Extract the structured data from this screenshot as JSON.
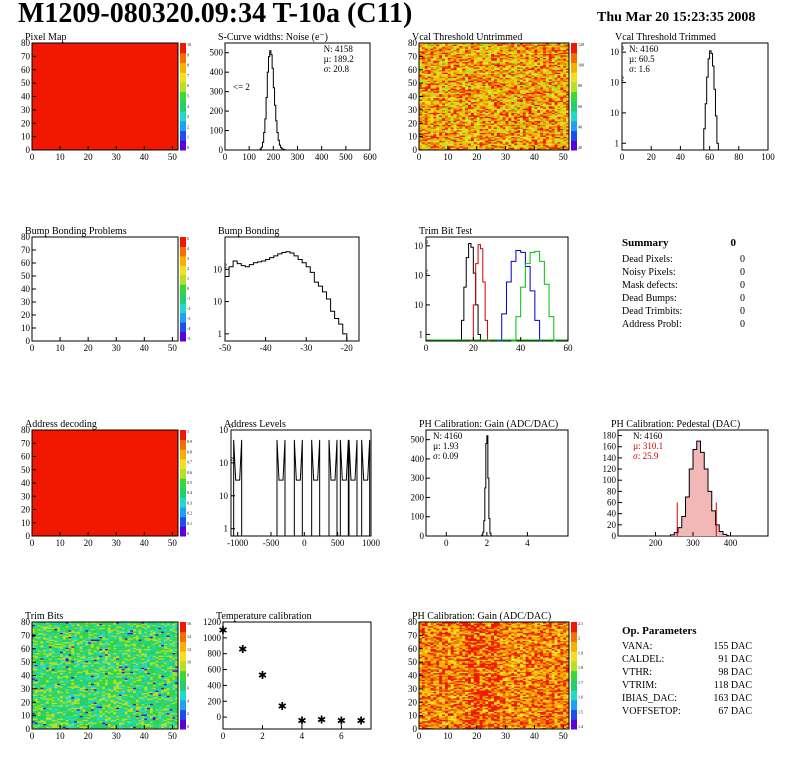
{
  "header": {
    "title": "M1209-080320.09:34 T-10a (C11)",
    "date": "Thu Mar 20 15:23:35 2008"
  },
  "palette": {
    "rainbow": [
      "#5a00d8",
      "#1c4df0",
      "#1fa0f0",
      "#22d8c8",
      "#20d070",
      "#38d838",
      "#b8e020",
      "#f0e020",
      "#f8b000",
      "#f07000",
      "#f01800"
    ],
    "trim_series_colors": [
      "#000000",
      "#d00000",
      "#0000d0",
      "#00c000"
    ],
    "pedestal_fill": "#f2b8b8"
  },
  "summary": {
    "title": "Summary",
    "total": "0",
    "rows": [
      {
        "label": "Dead Pixels:",
        "value": "0"
      },
      {
        "label": "Noisy Pixels:",
        "value": "0"
      },
      {
        "label": "Mask defects:",
        "value": "0"
      },
      {
        "label": "Dead Bumps:",
        "value": "0"
      },
      {
        "label": "Dead Trimbits:",
        "value": "0"
      },
      {
        "label": "Address Probl:",
        "value": "0"
      }
    ]
  },
  "op_params": {
    "title": "Op. Parameters",
    "rows": [
      {
        "label": "VANA:",
        "value": "155 DAC"
      },
      {
        "label": "CALDEL:",
        "value": "91 DAC"
      },
      {
        "label": "VTHR:",
        "value": "98 DAC"
      },
      {
        "label": "VTRIM:",
        "value": "118 DAC"
      },
      {
        "label": "IBIAS_DAC:",
        "value": "163 DAC"
      },
      {
        "label": "VOFFSETOP:",
        "value": "67 DAC"
      }
    ]
  },
  "chart_data": [
    {
      "id": "pixel-map",
      "type": "heatmap",
      "title": "Pixel Map",
      "xlim": [
        0,
        52
      ],
      "ylim": [
        0,
        80
      ],
      "xticks": [
        0,
        10,
        20,
        30,
        40,
        50
      ],
      "yticks": [
        0,
        10,
        20,
        30,
        40,
        50,
        60,
        70,
        80
      ],
      "pattern": "uniform",
      "fill": "#f01800",
      "zticks": [
        "10",
        "9",
        "8",
        "7",
        "6",
        "5",
        "4",
        "3",
        "2",
        "1",
        "0"
      ]
    },
    {
      "id": "scurve-widths",
      "type": "histogram",
      "title": "S-Curve widths: Noise (e⁻)",
      "xlim": [
        0,
        600
      ],
      "ylim": [
        0,
        550
      ],
      "xticks": [
        0,
        100,
        200,
        300,
        400,
        500,
        600
      ],
      "yticks": [
        0,
        100,
        200,
        300,
        400,
        500
      ],
      "stats": [
        "N: 4158",
        "µ: 189.2",
        "σ: 20.8"
      ],
      "annotation": "<= 2",
      "series": [
        {
          "x": [
            140,
            145,
            150,
            155,
            160,
            165,
            170,
            175,
            180,
            185,
            190,
            195,
            200,
            205,
            210,
            215,
            220,
            225,
            230,
            235,
            240,
            245,
            250
          ],
          "y": [
            0,
            5,
            15,
            40,
            90,
            160,
            270,
            400,
            480,
            510,
            490,
            420,
            320,
            230,
            150,
            90,
            50,
            25,
            12,
            6,
            3,
            1,
            0
          ]
        }
      ]
    },
    {
      "id": "vcal-untrimmed",
      "type": "heatmap",
      "title": "Vcal Threshold Untrimmed",
      "xlim": [
        0,
        52
      ],
      "ylim": [
        0,
        80
      ],
      "xticks": [
        0,
        10,
        20,
        30,
        40,
        50
      ],
      "yticks": [
        0,
        10,
        20,
        30,
        40,
        50,
        60,
        70,
        80
      ],
      "pattern": "random",
      "levels": [
        6,
        7,
        8,
        9,
        10
      ],
      "zticks": [
        "120",
        "100",
        "80",
        "60",
        "40",
        "20"
      ]
    },
    {
      "id": "vcal-trimmed",
      "type": "histogram",
      "title": "Vcal Threshold Trimmed",
      "xlim": [
        0,
        100
      ],
      "ylim": [
        0.6,
        2000
      ],
      "log": true,
      "xticks": [
        0,
        20,
        40,
        60,
        80,
        100
      ],
      "yticks": [
        1,
        10,
        100,
        1000
      ],
      "stats": [
        "N: 4160",
        "µ: 60.5",
        "σ: 1.6"
      ],
      "series": [
        {
          "x": [
            55,
            56,
            57,
            58,
            59,
            60,
            61,
            62,
            63,
            64,
            65,
            66
          ],
          "y": [
            0.6,
            3,
            20,
            150,
            600,
            1100,
            900,
            350,
            60,
            8,
            1,
            0.6
          ]
        }
      ]
    },
    {
      "id": "bump-bonding-problems",
      "type": "heatmap",
      "title": "Bump Bonding Problems",
      "xlim": [
        0,
        52
      ],
      "ylim": [
        0,
        80
      ],
      "xticks": [
        0,
        10,
        20,
        30,
        40,
        50
      ],
      "yticks": [
        0,
        10,
        20,
        30,
        40,
        50,
        60,
        70,
        80
      ],
      "pattern": "empty",
      "zticks": [
        "5",
        "4",
        "3",
        "2",
        "1",
        "0",
        "-1",
        "-2",
        "-3",
        "-4",
        "-5"
      ]
    },
    {
      "id": "bump-bonding",
      "type": "histogram",
      "title": "Bump Bonding",
      "xlim": [
        -50,
        -17
      ],
      "ylim": [
        0.6,
        1000
      ],
      "log": true,
      "xticks": [
        -50,
        -40,
        -30,
        -20
      ],
      "yticks": [
        1,
        10,
        100
      ],
      "stats": [],
      "series": [
        {
          "x": [
            -50,
            -49,
            -48,
            -47,
            -46,
            -45,
            -44,
            -43,
            -42,
            -41,
            -40,
            -39,
            -38,
            -37,
            -36,
            -35,
            -34,
            -33,
            -32,
            -31,
            -30,
            -29,
            -28,
            -27,
            -26,
            -25,
            -24,
            -23,
            -22,
            -21,
            -20,
            -19
          ],
          "y": [
            60,
            120,
            180,
            150,
            130,
            120,
            140,
            160,
            170,
            180,
            200,
            230,
            260,
            300,
            330,
            350,
            320,
            260,
            200,
            160,
            120,
            80,
            40,
            30,
            20,
            12,
            5,
            3,
            2,
            1,
            0.6,
            0.6
          ]
        }
      ]
    },
    {
      "id": "trim-bit-test",
      "type": "histogram",
      "title": "Trim Bit Test",
      "xlim": [
        0,
        60
      ],
      "ylim": [
        0.6,
        2000
      ],
      "log": true,
      "xticks": [
        0,
        20,
        40,
        60
      ],
      "yticks": [
        1,
        10,
        100,
        1000
      ],
      "stats": [],
      "series": [
        {
          "x": [
            14,
            15,
            16,
            17,
            18,
            19,
            20,
            21,
            22,
            23
          ],
          "y": [
            0.6,
            3,
            40,
            400,
            1200,
            900,
            120,
            10,
            1,
            0.6
          ]
        },
        {
          "x": [
            19,
            20,
            21,
            22,
            23,
            24,
            25,
            26
          ],
          "y": [
            0.6,
            10,
            250,
            1100,
            800,
            60,
            3,
            0.6
          ]
        },
        {
          "x": [
            30,
            32,
            34,
            36,
            38,
            40,
            42,
            44,
            46,
            48
          ],
          "y": [
            0.6,
            5,
            60,
            300,
            700,
            600,
            200,
            30,
            3,
            0.6
          ]
        },
        {
          "x": [
            36,
            38,
            40,
            42,
            44,
            46,
            48,
            50,
            52,
            54
          ],
          "y": [
            0.6,
            4,
            40,
            250,
            600,
            650,
            300,
            50,
            4,
            0.6
          ]
        }
      ]
    },
    {
      "id": "address-decoding",
      "type": "heatmap",
      "title": "Address decoding",
      "xlim": [
        0,
        52
      ],
      "ylim": [
        0,
        80
      ],
      "xticks": [
        0,
        10,
        20,
        30,
        40,
        50
      ],
      "yticks": [
        0,
        10,
        20,
        30,
        40,
        50,
        60,
        70,
        80
      ],
      "pattern": "uniform",
      "fill": "#f01800",
      "zticks": [
        "1",
        "0.9",
        "0.8",
        "0.7",
        "0.6",
        "0.5",
        "0.4",
        "0.3",
        "0.2",
        "0.1",
        "0"
      ]
    },
    {
      "id": "address-levels",
      "type": "histogram",
      "title": "Address Levels",
      "xlim": [
        -1100,
        1000
      ],
      "ylim": [
        0.6,
        1000
      ],
      "log": true,
      "xticks": [
        -1000,
        -500,
        0,
        500,
        1000
      ],
      "yticks": [
        1,
        10,
        100,
        1000
      ],
      "stats": [],
      "peaks": [
        -1000,
        -350,
        -90,
        170,
        430,
        600,
        730,
        920
      ]
    },
    {
      "id": "ph-gain",
      "type": "histogram",
      "title": "PH Calibration: Gain (ADC/DAC)",
      "xlim": [
        -1,
        6
      ],
      "ylim": [
        0,
        550
      ],
      "xticks": [
        0,
        2,
        4
      ],
      "yticks": [
        0,
        100,
        200,
        300,
        400,
        500
      ],
      "stats": [
        "N: 4160",
        "µ: 1.93",
        "σ: 0.09"
      ],
      "series": [
        {
          "x": [
            1.7,
            1.75,
            1.8,
            1.85,
            1.9,
            1.95,
            2.0,
            2.05,
            2.1,
            2.15,
            2.2
          ],
          "y": [
            0,
            5,
            20,
            80,
            250,
            480,
            520,
            300,
            90,
            15,
            0
          ]
        }
      ]
    },
    {
      "id": "ph-pedestal",
      "type": "histogram",
      "title": "PH Calibration: Pedestal (DAC)",
      "xlim": [
        100,
        500
      ],
      "ylim": [
        0,
        190
      ],
      "xticks": [
        200,
        300,
        400
      ],
      "yticks": [
        0,
        20,
        40,
        60,
        80,
        100,
        120,
        140,
        160,
        180
      ],
      "stats": [
        "N: 4160",
        "µ: 310.1",
        "σ: 25.9"
      ],
      "highlight_stats": [
        1,
        2
      ],
      "series": [
        {
          "x": [
            240,
            250,
            260,
            270,
            280,
            290,
            300,
            310,
            320,
            330,
            340,
            350,
            360,
            370,
            380,
            390
          ],
          "y": [
            2,
            6,
            15,
            35,
            70,
            120,
            155,
            170,
            150,
            120,
            80,
            45,
            20,
            8,
            3,
            1
          ]
        }
      ],
      "markers": [
        258,
        362
      ]
    },
    {
      "id": "trim-bits",
      "type": "heatmap",
      "title": "Trim Bits",
      "xlim": [
        0,
        52
      ],
      "ylim": [
        0,
        80
      ],
      "xticks": [
        0,
        10,
        20,
        30,
        40,
        50
      ],
      "yticks": [
        0,
        10,
        20,
        30,
        40,
        50,
        60,
        70,
        80
      ],
      "pattern": "random",
      "levels": [
        3,
        4,
        5,
        6
      ],
      "zticks": [
        "16",
        "14",
        "12",
        "10",
        "8",
        "6",
        "4",
        "2",
        "0"
      ]
    },
    {
      "id": "temperature-calibration",
      "type": "scatter",
      "title": "Temperature calibration",
      "xlim": [
        0,
        7.5
      ],
      "ylim": [
        -150,
        1200
      ],
      "xticks": [
        0,
        2,
        4,
        6
      ],
      "yticks": [
        0,
        200,
        400,
        600,
        800,
        1000,
        1200
      ],
      "points": [
        {
          "x": 0,
          "y": 1100
        },
        {
          "x": 1,
          "y": 860
        },
        {
          "x": 2,
          "y": 530
        },
        {
          "x": 3,
          "y": 140
        },
        {
          "x": 4,
          "y": -40
        },
        {
          "x": 5,
          "y": -30
        },
        {
          "x": 6,
          "y": -40
        },
        {
          "x": 7,
          "y": -40
        }
      ]
    },
    {
      "id": "ph-gain-map",
      "type": "heatmap",
      "title": "PH Calibration: Gain (ADC/DAC)",
      "xlim": [
        0,
        52
      ],
      "ylim": [
        0,
        80
      ],
      "xticks": [
        0,
        10,
        20,
        30,
        40,
        50
      ],
      "yticks": [
        0,
        10,
        20,
        30,
        40,
        50,
        60,
        70,
        80
      ],
      "pattern": "random",
      "levels": [
        7,
        8,
        9,
        10
      ],
      "zticks": [
        "2.1",
        "2",
        "1.9",
        "1.8",
        "1.7",
        "1.6",
        "1.5",
        "1.4"
      ]
    }
  ]
}
